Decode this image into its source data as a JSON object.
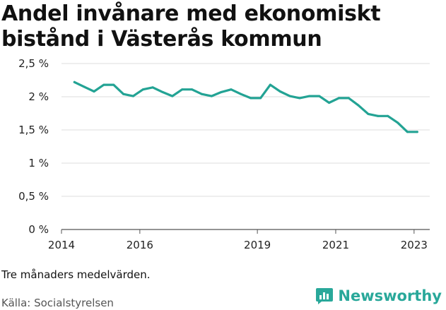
{
  "title": "Andel invånare med ekonomiskt bistånd i Västerås kommun",
  "note": "Tre månaders medelvärden.",
  "source": "Källa: Socialstyrelsen",
  "brand": {
    "name": "Newsworthy",
    "logo_icon": "bar-chart-speech-bubble-icon",
    "color": "#29a89a"
  },
  "chart_data": {
    "type": "line",
    "title": "Andel invånare med ekonomiskt bistånd i Västerås kommun",
    "xlabel": "",
    "ylabel": "",
    "x_ticks": [
      "2014",
      "2016",
      "2019",
      "2021",
      "2023"
    ],
    "x_tick_values": [
      2014,
      2016,
      2019,
      2021,
      2023
    ],
    "y_ticks": [
      "0 %",
      "0,5 %",
      "1 %",
      "1,5 %",
      "2 %",
      "2,5 %"
    ],
    "y_tick_values": [
      0,
      0.5,
      1,
      1.5,
      2,
      2.5
    ],
    "ylim": [
      0,
      2.5
    ],
    "xlim": [
      2014,
      2023.4
    ],
    "grid": true,
    "series": [
      {
        "color": "#23a394",
        "x": [
          2014.33,
          2014.58,
          2014.83,
          2015.08,
          2015.33,
          2015.58,
          2015.83,
          2016.08,
          2016.33,
          2016.58,
          2016.83,
          2017.08,
          2017.33,
          2017.58,
          2017.83,
          2018.08,
          2018.33,
          2018.58,
          2018.83,
          2019.08,
          2019.33,
          2019.58,
          2019.83,
          2020.08,
          2020.33,
          2020.58,
          2020.83,
          2021.08,
          2021.33,
          2021.58,
          2021.83,
          2022.08,
          2022.33,
          2022.58,
          2022.83,
          2023.08
        ],
        "values": [
          2.22,
          2.15,
          2.08,
          2.18,
          2.18,
          2.04,
          2.01,
          2.11,
          2.14,
          2.07,
          2.01,
          2.11,
          2.11,
          2.04,
          2.01,
          2.07,
          2.11,
          2.04,
          1.98,
          1.98,
          2.18,
          2.08,
          2.01,
          1.98,
          2.01,
          2.01,
          1.91,
          1.98,
          1.98,
          1.87,
          1.74,
          1.71,
          1.71,
          1.61,
          1.47,
          1.47
        ]
      }
    ]
  }
}
